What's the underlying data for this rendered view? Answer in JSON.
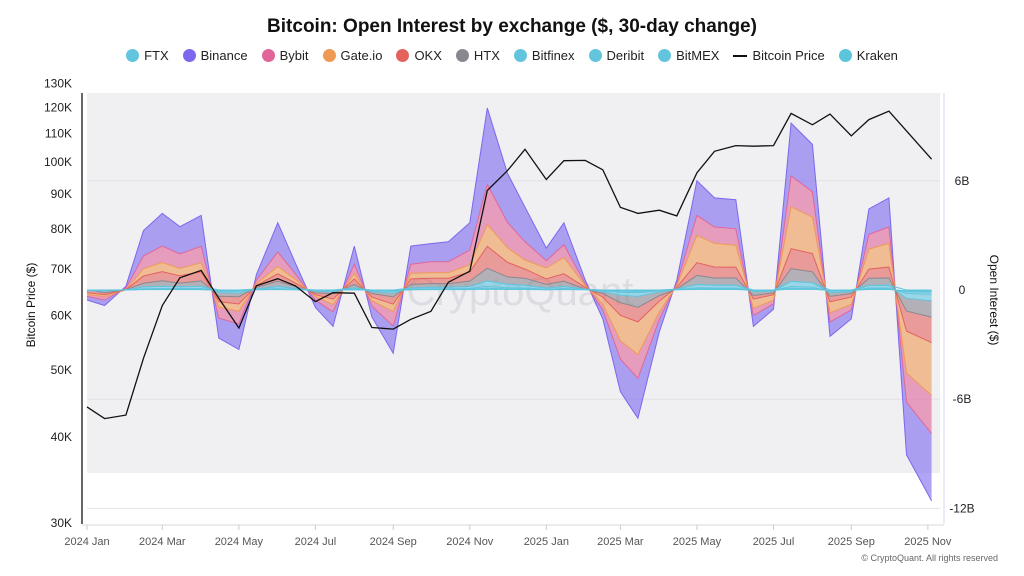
{
  "chart_data": {
    "type": "area",
    "title": "Bitcoin: Open Interest by exchange ($, 30-day change)",
    "watermark": "CryptoQuant",
    "copyright": "© CryptoQuant. All rights reserved",
    "ylabel_left": "Bitcoin Price ($)",
    "ylabel_right": "Open Interest ($)",
    "left_axis": {
      "scale": "log",
      "range": [
        30000,
        130000
      ],
      "ticks": [
        "30K",
        "40K",
        "50K",
        "60K",
        "70K",
        "80K",
        "90K",
        "100K",
        "110K",
        "120K",
        "130K"
      ],
      "tick_values": [
        30000,
        40000,
        50000,
        60000,
        70000,
        80000,
        90000,
        100000,
        110000,
        120000,
        130000
      ]
    },
    "right_axis": {
      "scale": "linear",
      "unit": "B",
      "range": [
        -12,
        6
      ],
      "ticks": [
        "6B",
        "0",
        "-6B",
        "-12B"
      ],
      "tick_values": [
        6,
        0,
        -6,
        -12
      ],
      "grid": true
    },
    "x_ticks": [
      "2024 Jan",
      "2024 Mar",
      "2024 May",
      "2024 Jul",
      "2024 Sep",
      "2024 Nov",
      "2025 Jan",
      "2025 Mar",
      "2025 May",
      "2025 Jul",
      "2025 Sep",
      "2025 Nov"
    ],
    "x_tick_dates": [
      "2024-01-01",
      "2024-03-01",
      "2024-05-01",
      "2024-07-01",
      "2024-09-01",
      "2024-11-01",
      "2025-01-01",
      "2025-03-01",
      "2025-05-01",
      "2025-07-01",
      "2025-09-01",
      "2025-11-01"
    ],
    "x": [
      "2024-01-01",
      "2024-01-15",
      "2024-02-01",
      "2024-02-15",
      "2024-03-01",
      "2024-03-15",
      "2024-04-01",
      "2024-04-15",
      "2024-05-01",
      "2024-05-15",
      "2024-06-01",
      "2024-06-15",
      "2024-07-01",
      "2024-07-15",
      "2024-08-01",
      "2024-08-15",
      "2024-09-01",
      "2024-09-15",
      "2024-10-01",
      "2024-10-15",
      "2024-11-01",
      "2024-11-15",
      "2024-12-01",
      "2024-12-15",
      "2025-01-01",
      "2025-01-15",
      "2025-02-01",
      "2025-02-15",
      "2025-03-01",
      "2025-03-15",
      "2025-04-01",
      "2025-04-15",
      "2025-05-01",
      "2025-05-15",
      "2025-06-01",
      "2025-06-15",
      "2025-07-01",
      "2025-07-15",
      "2025-08-01",
      "2025-08-15",
      "2025-09-01",
      "2025-09-15",
      "2025-10-01",
      "2025-10-15",
      "2025-11-04"
    ],
    "legend_position": "top",
    "series": [
      {
        "name": "FTX",
        "color": "#62c4dd",
        "axis": "right",
        "values": [
          0,
          0,
          0,
          0,
          0,
          0,
          0,
          0,
          0,
          0,
          0,
          0,
          0,
          0,
          0,
          0,
          0,
          0,
          0,
          0,
          0,
          0,
          0,
          0,
          0,
          0,
          0,
          0,
          0,
          0,
          0,
          0,
          0,
          0,
          0,
          0,
          0,
          0,
          0,
          0,
          0,
          0,
          0,
          0,
          0
        ]
      },
      {
        "name": "Binance",
        "color": "#7b68ee",
        "axis": "right",
        "values": [
          -0.2,
          -0.3,
          0.1,
          1.4,
          1.8,
          1.5,
          1.7,
          -1.1,
          -1.4,
          0.3,
          1.6,
          0.6,
          -0.4,
          -0.8,
          1.0,
          -0.6,
          -1.5,
          1.0,
          1.0,
          1.1,
          1.5,
          4.2,
          2.7,
          1.9,
          0.7,
          1.2,
          0.2,
          -0.5,
          -1.8,
          -2.2,
          -0.7,
          0.2,
          1.9,
          1.6,
          1.6,
          -0.6,
          -0.3,
          2.9,
          2.6,
          -0.8,
          -0.5,
          1.4,
          1.6,
          -2.9,
          -3.7
        ]
      },
      {
        "name": "Bybit",
        "color": "#e0669a",
        "axis": "right",
        "values": [
          -0.1,
          -0.2,
          0.1,
          0.7,
          0.9,
          0.8,
          0.9,
          -0.6,
          -0.7,
          0.2,
          0.8,
          0.3,
          -0.2,
          -0.4,
          0.5,
          -0.3,
          -0.8,
          0.5,
          0.6,
          0.6,
          0.8,
          2.2,
          1.4,
          1.0,
          0.4,
          0.7,
          0.1,
          -0.3,
          -1.0,
          -1.3,
          -0.4,
          0.1,
          1.1,
          0.9,
          0.9,
          -0.4,
          -0.2,
          1.7,
          1.4,
          -0.5,
          -0.3,
          0.8,
          0.9,
          -1.6,
          -2.1
        ]
      },
      {
        "name": "Gate.io",
        "color": "#ee9a55",
        "axis": "right",
        "values": [
          -0.1,
          -0.1,
          0,
          0.4,
          0.5,
          0.4,
          0.5,
          -0.3,
          -0.4,
          0.1,
          0.4,
          0.2,
          -0.1,
          -0.3,
          0.3,
          -0.2,
          -0.4,
          0.3,
          0.3,
          0.3,
          0.4,
          1.2,
          0.8,
          0.5,
          0.6,
          0.9,
          0.1,
          -0.4,
          -1.4,
          -1.8,
          -0.6,
          0.1,
          1.5,
          1.3,
          1.2,
          -0.5,
          -0.3,
          2.3,
          2.0,
          -0.6,
          -0.4,
          1.1,
          1.3,
          -2.3,
          -2.9
        ]
      },
      {
        "name": "OKX",
        "color": "#e4625e",
        "axis": "right",
        "values": [
          -0.1,
          -0.1,
          0,
          0.4,
          0.5,
          0.4,
          0.5,
          -0.3,
          -0.4,
          0.1,
          0.4,
          0.2,
          -0.1,
          -0.3,
          0.3,
          -0.2,
          -0.4,
          0.3,
          0.3,
          0.3,
          0.5,
          1.2,
          0.8,
          0.5,
          0.3,
          0.4,
          0.1,
          -0.2,
          -0.7,
          -0.8,
          -0.3,
          0.1,
          0.7,
          0.6,
          0.6,
          -0.2,
          -0.1,
          1.1,
          1.0,
          -0.3,
          -0.2,
          0.5,
          0.6,
          -1.1,
          -1.4
        ]
      },
      {
        "name": "HTX",
        "color": "#8a8790",
        "axis": "right",
        "values": [
          0,
          -0.1,
          0,
          0.2,
          0.3,
          0.2,
          0.3,
          -0.2,
          -0.2,
          0.1,
          0.3,
          0.1,
          -0.1,
          -0.1,
          0.2,
          -0.1,
          -0.2,
          0.2,
          0.2,
          0.2,
          0.3,
          0.7,
          0.4,
          0.4,
          0.2,
          0.3,
          0,
          -0.1,
          -0.4,
          -0.6,
          -0.2,
          0,
          0.5,
          0.4,
          0.4,
          -0.2,
          -0.1,
          0.7,
          0.6,
          -0.2,
          -0.1,
          0.4,
          0.4,
          -0.7,
          -0.9
        ]
      },
      {
        "name": "Bitfinex",
        "color": "#62c4dd",
        "axis": "right",
        "values": [
          -0.02,
          -0.02,
          0.01,
          0.1,
          0.13,
          0.1,
          0.12,
          -0.07,
          -0.1,
          0.02,
          0.11,
          0.05,
          -0.03,
          -0.06,
          0.07,
          -0.05,
          -0.1,
          0.07,
          0.08,
          0.08,
          0.11,
          0.3,
          0.2,
          0.14,
          0.07,
          0.11,
          0.02,
          -0.05,
          -0.17,
          -0.2,
          -0.07,
          0.02,
          0.18,
          0.15,
          0.15,
          -0.06,
          -0.03,
          0.28,
          0.24,
          -0.08,
          -0.05,
          0.14,
          0.15,
          -0.27,
          -0.35
        ]
      },
      {
        "name": "Deribit",
        "color": "#62c4dd",
        "axis": "right",
        "values": [
          -0.01,
          -0.01,
          0,
          0.03,
          0.04,
          0.04,
          0.04,
          -0.03,
          -0.03,
          0.01,
          0.04,
          0.02,
          -0.01,
          -0.02,
          0.02,
          -0.02,
          -0.04,
          0.02,
          0.03,
          0.03,
          0.04,
          0.1,
          0.06,
          0.05,
          0.02,
          0.04,
          0.01,
          -0.02,
          -0.06,
          -0.07,
          -0.02,
          0.01,
          0.06,
          0.05,
          0.05,
          -0.02,
          -0.01,
          0.09,
          0.08,
          -0.03,
          -0.02,
          0.05,
          0.05,
          -0.09,
          -0.12
        ]
      },
      {
        "name": "BitMEX",
        "color": "#62c4dd",
        "axis": "right",
        "values": [
          -0.01,
          -0.01,
          0,
          0.02,
          0.02,
          0.02,
          0.02,
          -0.02,
          -0.02,
          0.01,
          0.02,
          0.01,
          -0.01,
          -0.01,
          0.01,
          -0.01,
          -0.02,
          0.01,
          0.02,
          0.02,
          0.02,
          0.05,
          0.03,
          0.03,
          0.01,
          0.02,
          0.01,
          -0.01,
          -0.03,
          -0.04,
          -0.01,
          0.01,
          0.03,
          0.03,
          0.03,
          -0.01,
          -0.01,
          0.05,
          0.04,
          -0.02,
          -0.01,
          0.03,
          0.03,
          -0.05,
          -0.06
        ]
      },
      {
        "name": "Kraken",
        "color": "#5bc5dc",
        "axis": "right",
        "values": [
          -0.01,
          -0.01,
          0,
          0.02,
          0.02,
          0.02,
          0.02,
          -0.02,
          -0.02,
          0.01,
          0.02,
          0.01,
          -0.01,
          -0.01,
          0.01,
          -0.01,
          -0.02,
          0.01,
          0.02,
          0.02,
          0.02,
          0.05,
          0.03,
          0.03,
          0.01,
          0.02,
          0.01,
          -0.01,
          -0.03,
          -0.04,
          -0.01,
          0.01,
          0.03,
          0.03,
          0.03,
          -0.01,
          -0.01,
          0.05,
          0.04,
          -0.02,
          -0.01,
          0.03,
          0.03,
          -0.05,
          -0.06
        ]
      },
      {
        "name": "Bitcoin Price",
        "color": "#111111",
        "axis": "left",
        "type": "line",
        "values": [
          44200,
          42500,
          43000,
          52000,
          62000,
          68000,
          69700,
          63500,
          57500,
          66200,
          67800,
          66200,
          62800,
          64700,
          64600,
          57600,
          57300,
          59200,
          60800,
          67000,
          69500,
          91000,
          97200,
          104400,
          94400,
          100500,
          100600,
          97500,
          86000,
          84300,
          85200,
          83600,
          96500,
          103700,
          105700,
          105500,
          105700,
          117700,
          113300,
          117400,
          109200,
          115300,
          118600,
          111000,
          101000
        ]
      }
    ]
  }
}
